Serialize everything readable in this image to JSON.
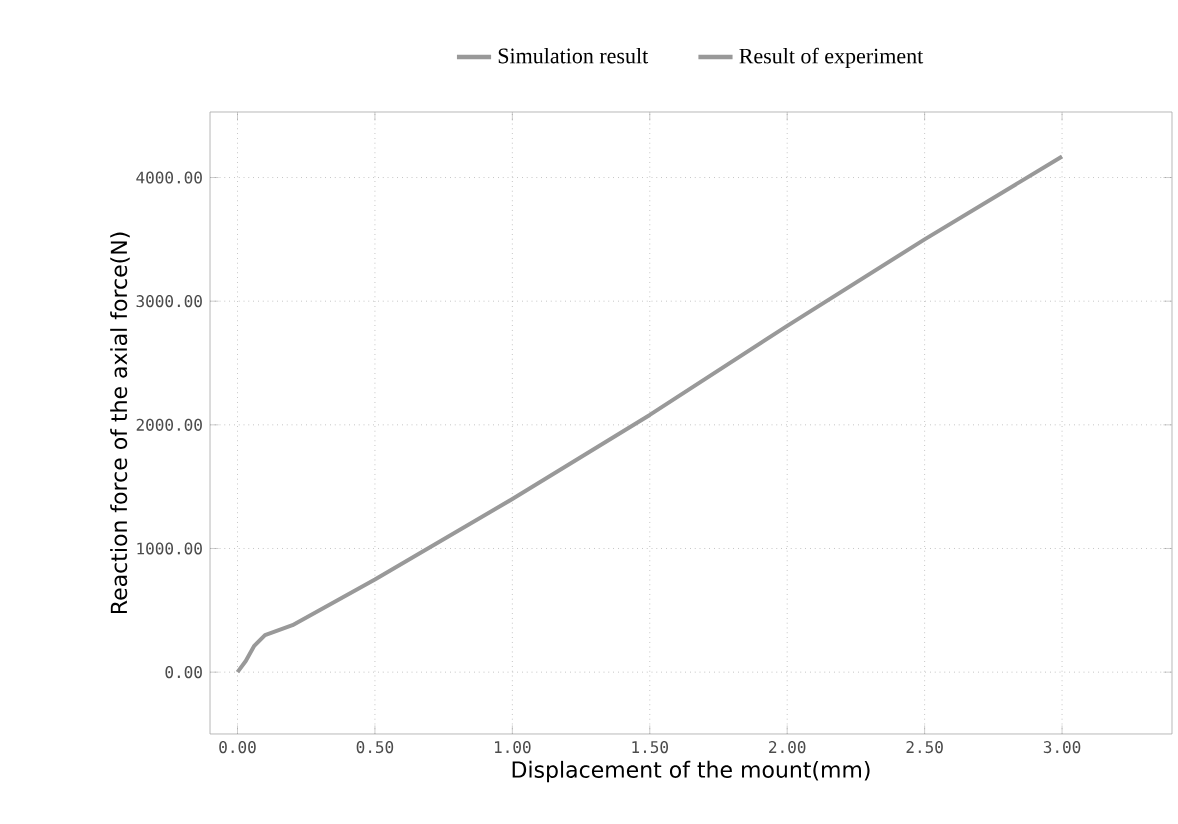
{
  "chart_data": {
    "type": "line",
    "xlabel": "Displacement of the mount(mm)",
    "ylabel": "Reaction force of the axial force(N)",
    "xlim": [
      -0.1,
      3.4
    ],
    "ylim": [
      -500,
      4530
    ],
    "xticks": [
      {
        "value": 0,
        "label": "0.00"
      },
      {
        "value": 0.5,
        "label": "0.50"
      },
      {
        "value": 1,
        "label": "1.00"
      },
      {
        "value": 1.5,
        "label": "1.50"
      },
      {
        "value": 2,
        "label": "2.00"
      },
      {
        "value": 2.5,
        "label": "2.50"
      },
      {
        "value": 3,
        "label": "3.00"
      }
    ],
    "yticks": [
      {
        "value": 0,
        "label": "0.00"
      },
      {
        "value": 1000,
        "label": "1000.00"
      },
      {
        "value": 2000,
        "label": "2000.00"
      },
      {
        "value": 3000,
        "label": "3000.00"
      },
      {
        "value": 4000,
        "label": "4000.00"
      }
    ],
    "grid": true,
    "legend": "top",
    "line_style": "solid",
    "series": [
      {
        "name": "Simulation result",
        "color": "#999999",
        "x": [
          0,
          0.03,
          0.06,
          0.1,
          0.2,
          0.5,
          1.0,
          1.5,
          2.0,
          2.5,
          3.0
        ],
        "values": [
          0,
          90,
          210,
          300,
          380,
          750,
          1400,
          2080,
          2800,
          3500,
          4170
        ]
      },
      {
        "name": "Result of experiment",
        "color": "#999999",
        "values": [
          null,
          null,
          null,
          null,
          null,
          null,
          null,
          null,
          null,
          null,
          null
        ]
      }
    ]
  }
}
